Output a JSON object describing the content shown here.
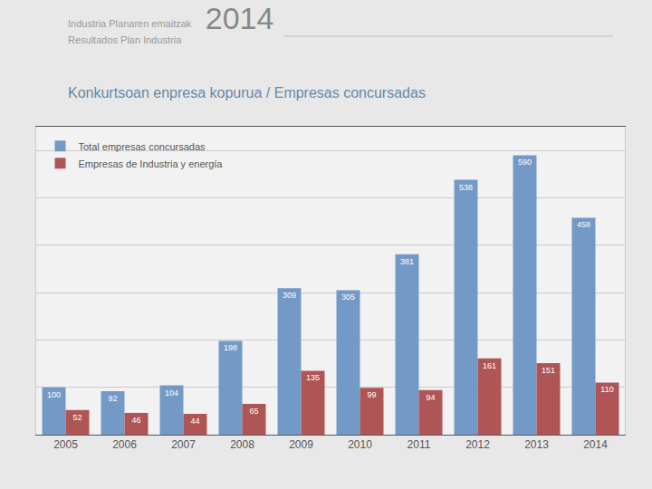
{
  "chart_data": {
    "type": "bar",
    "title": "2014",
    "subtitle": "Konkurtsoan enpresa kopurua / Empresas concursadas",
    "annotations": [
      "Industria Planaren emaitzak",
      "Resultados Plan Industria"
    ],
    "categories": [
      "2005",
      "2006",
      "2007",
      "2008",
      "2009",
      "2010",
      "2011",
      "2012",
      "2013",
      "2014"
    ],
    "series": [
      {
        "name": "Total empresas concursadas",
        "color": "#7399c6",
        "values": [
          100,
          92,
          104,
          198,
          309,
          305,
          381,
          538,
          590,
          458
        ]
      },
      {
        "name": "Empresas de Industria y energía",
        "color": "#b05555",
        "values": [
          52,
          46,
          44,
          65,
          135,
          99,
          94,
          161,
          151,
          110
        ]
      }
    ],
    "ylim": [
      0,
      650
    ],
    "yticks": [
      100,
      200,
      300,
      400,
      500,
      600
    ],
    "grid": true,
    "tick_labels": "x",
    "data_labels": true,
    "legend": "upper left"
  }
}
